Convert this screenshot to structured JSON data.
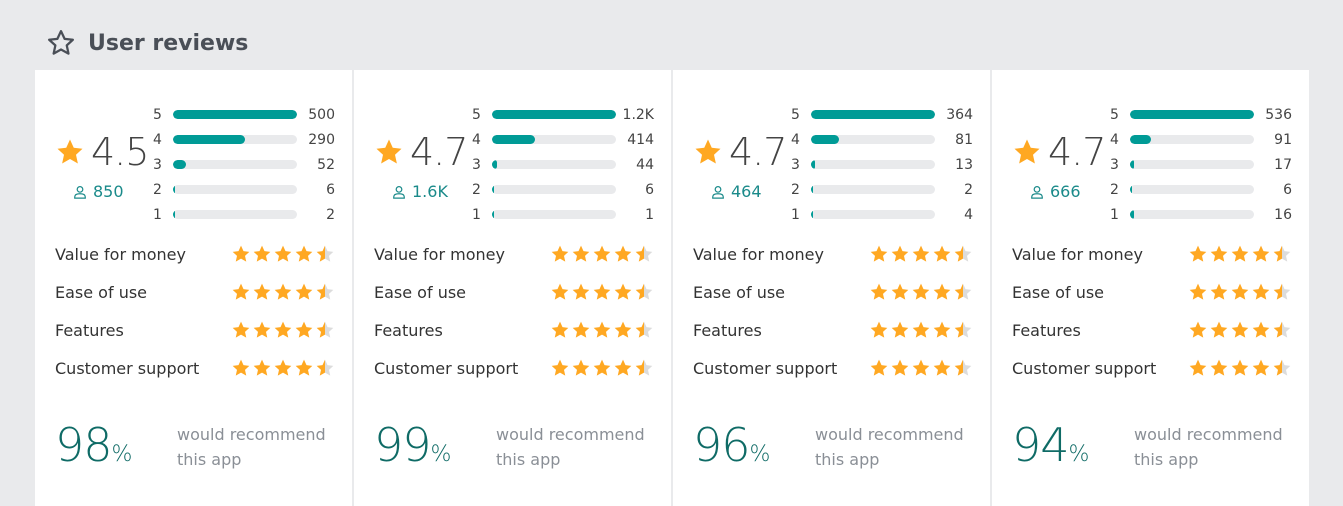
{
  "header": {
    "title": "User reviews",
    "icon": "star-outline-icon"
  },
  "colors": {
    "accent": "#009b96",
    "star": "#ffa822",
    "star_empty": "#dcdcdc"
  },
  "recommend_text": "would recommend this app",
  "percent_sign": "%",
  "cards": [
    {
      "rating": "4.5",
      "reviewers": "850",
      "histogram": [
        {
          "star": "5",
          "count": "500",
          "value": 500
        },
        {
          "star": "4",
          "count": "290",
          "value": 290
        },
        {
          "star": "3",
          "count": "52",
          "value": 52
        },
        {
          "star": "2",
          "count": "6",
          "value": 6
        },
        {
          "star": "1",
          "count": "2",
          "value": 2
        }
      ],
      "sub_ratings": [
        {
          "label": "Value for money",
          "stars": 4.5
        },
        {
          "label": "Ease of use",
          "stars": 4.5
        },
        {
          "label": "Features",
          "stars": 4.5
        },
        {
          "label": "Customer support",
          "stars": 4.5
        }
      ],
      "recommend": "98"
    },
    {
      "rating": "4.7",
      "reviewers": "1.6K",
      "histogram": [
        {
          "star": "5",
          "count": "1.2K",
          "value": 1200
        },
        {
          "star": "4",
          "count": "414",
          "value": 414
        },
        {
          "star": "3",
          "count": "44",
          "value": 44
        },
        {
          "star": "2",
          "count": "6",
          "value": 6
        },
        {
          "star": "1",
          "count": "1",
          "value": 1
        }
      ],
      "sub_ratings": [
        {
          "label": "Value for money",
          "stars": 4.5
        },
        {
          "label": "Ease of use",
          "stars": 4.5
        },
        {
          "label": "Features",
          "stars": 4.5
        },
        {
          "label": "Customer support",
          "stars": 4.5
        }
      ],
      "recommend": "99"
    },
    {
      "rating": "4.7",
      "reviewers": "464",
      "histogram": [
        {
          "star": "5",
          "count": "364",
          "value": 364
        },
        {
          "star": "4",
          "count": "81",
          "value": 81
        },
        {
          "star": "3",
          "count": "13",
          "value": 13
        },
        {
          "star": "2",
          "count": "2",
          "value": 2
        },
        {
          "star": "1",
          "count": "4",
          "value": 4
        }
      ],
      "sub_ratings": [
        {
          "label": "Value for money",
          "stars": 4.5
        },
        {
          "label": "Ease of use",
          "stars": 4.5
        },
        {
          "label": "Features",
          "stars": 4.5
        },
        {
          "label": "Customer support",
          "stars": 4.5
        }
      ],
      "recommend": "96"
    },
    {
      "rating": "4.7",
      "reviewers": "666",
      "histogram": [
        {
          "star": "5",
          "count": "536",
          "value": 536
        },
        {
          "star": "4",
          "count": "91",
          "value": 91
        },
        {
          "star": "3",
          "count": "17",
          "value": 17
        },
        {
          "star": "2",
          "count": "6",
          "value": 6
        },
        {
          "star": "1",
          "count": "16",
          "value": 16
        }
      ],
      "sub_ratings": [
        {
          "label": "Value for money",
          "stars": 4.5
        },
        {
          "label": "Ease of use",
          "stars": 4.5
        },
        {
          "label": "Features",
          "stars": 4.5
        },
        {
          "label": "Customer support",
          "stars": 4.5
        }
      ],
      "recommend": "94"
    }
  ]
}
